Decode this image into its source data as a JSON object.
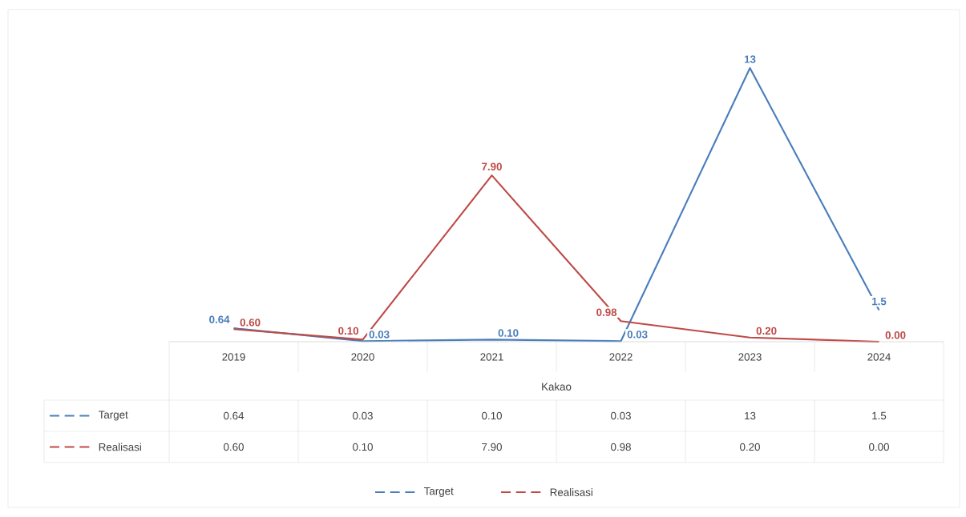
{
  "chart_data": {
    "type": "line",
    "xlabel": "Kakao",
    "categories": [
      "2019",
      "2020",
      "2021",
      "2022",
      "2023",
      "2024"
    ],
    "series": [
      {
        "name": "Target",
        "color": "#4a7ebb",
        "values": [
          0.64,
          0.03,
          0.1,
          0.03,
          13,
          1.5
        ],
        "value_labels": [
          "0.64",
          "0.03",
          "0.10",
          "0.03",
          "13",
          "1.5"
        ]
      },
      {
        "name": "Realisasi",
        "color": "#be4b48",
        "values": [
          0.6,
          0.1,
          7.9,
          0.98,
          0.2,
          0.0
        ],
        "value_labels": [
          "0.60",
          "0.10",
          "7.90",
          "0.98",
          "0.20",
          "0.00"
        ]
      }
    ],
    "legend": "bottom",
    "marker": "none",
    "line_style": "solid"
  }
}
